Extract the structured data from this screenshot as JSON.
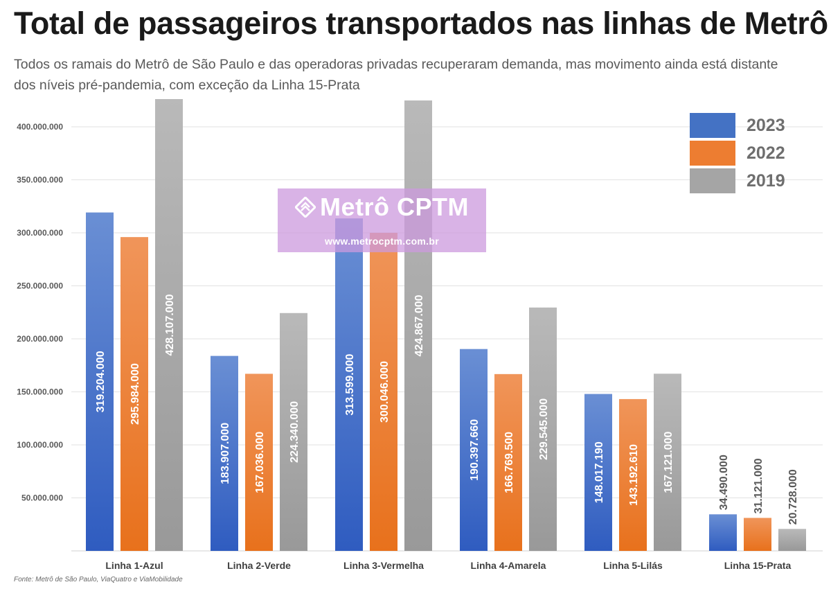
{
  "title": "Total de passageiros transportados nas linhas de Metrô",
  "subtitle": "Todos os ramais do Metrô de São Paulo e das operadoras privadas recuperaram demanda,  mas movimento ainda está distante dos níveis pré-pandemia, com exceção da Linha 15-Prata",
  "source": "Fonte: Metrô de São Paulo, ViaQuatro e ViaMobilidade",
  "watermark": {
    "brand": "Metrô CPTM",
    "url": "www.metrocptm.com.br"
  },
  "colors": {
    "2023": "#4472c4",
    "2022": "#ed7d31",
    "2019": "#a5a5a5",
    "gridline": "#e2e2e2"
  },
  "chart_data": {
    "type": "bar",
    "title": "Total de passageiros transportados nas linhas de Metrô",
    "categories": [
      "Linha 1-Azul",
      "Linha 2-Verde",
      "Linha 3-Vermelha",
      "Linha 4-Amarela",
      "Linha 5-Lilás",
      "Linha 15-Prata"
    ],
    "series": [
      {
        "name": "2023",
        "values": [
          319204000,
          183907000,
          313599000,
          190397660,
          148017190,
          34490000
        ],
        "labels": [
          "319.204.000",
          "183.907.000",
          "313.599.000",
          "190.397.660",
          "148.017.190",
          "34.490.000"
        ]
      },
      {
        "name": "2022",
        "values": [
          295984000,
          167036000,
          300046000,
          166769500,
          143192610,
          31121000
        ],
        "labels": [
          "295.984.000",
          "167.036.000",
          "300.046.000",
          "166.769.500",
          "143.192.610",
          "31.121.000"
        ]
      },
      {
        "name": "2019",
        "values": [
          428107000,
          224340000,
          424867000,
          229545000,
          167121000,
          20728000
        ],
        "labels": [
          "428.107.000",
          "224.340.000",
          "424.867.000",
          "229.545.000",
          "167.121.000",
          "20.728.000"
        ]
      }
    ],
    "yticks": [
      50000000,
      100000000,
      150000000,
      200000000,
      250000000,
      300000000,
      350000000,
      400000000
    ],
    "ytick_labels": [
      "50.000.000",
      "100.000.000",
      "150.000.000",
      "200.000.000",
      "250.000.000",
      "300.000.000",
      "350.000.000",
      "400.000.000"
    ],
    "ylim": [
      0,
      428107000
    ],
    "grid": true,
    "legend": "top-right",
    "data_label_orientation": "vertical"
  }
}
